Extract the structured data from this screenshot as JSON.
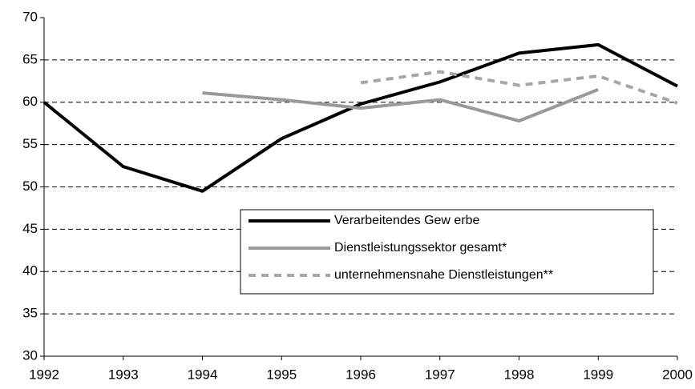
{
  "chart_data": {
    "type": "line",
    "categories": [
      "1992",
      "1993",
      "1994",
      "1995",
      "1996",
      "1997",
      "1998",
      "1999",
      "2000"
    ],
    "series": [
      {
        "name": "Verarbeitendes Gew erbe",
        "color": "#000000",
        "dash": false,
        "values": [
          60,
          52.4,
          49.5,
          55.7,
          59.8,
          62.4,
          65.8,
          66.8,
          61.9
        ]
      },
      {
        "name": "Dienstleistungssektor gesamt*",
        "color": "#999999",
        "dash": false,
        "values": [
          null,
          null,
          61.1,
          60.3,
          59.3,
          60.3,
          57.8,
          61.5,
          null
        ]
      },
      {
        "name": "unternehmensnahe Dienstleistungen**",
        "color": "#a6a6a6",
        "dash": true,
        "values": [
          null,
          null,
          null,
          null,
          62.3,
          63.6,
          62.0,
          63.1,
          59.9
        ]
      }
    ],
    "ylim": [
      30,
      70
    ],
    "yticks": [
      30,
      35,
      40,
      45,
      50,
      55,
      60,
      65,
      70
    ],
    "grid": true
  }
}
